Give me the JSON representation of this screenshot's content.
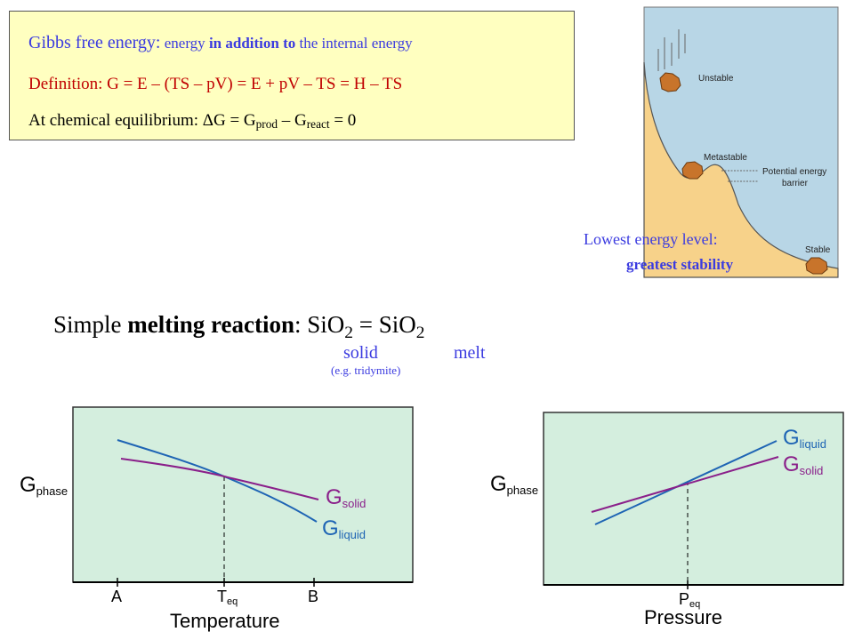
{
  "definition_box": {
    "title": "Gibbs free energy",
    "colon": ":",
    "subtitle_pre": " energy ",
    "subtitle_bold": "in addition to",
    "subtitle_post": " the internal energy",
    "definition": "Definition:  G  =  E – (TS – pV)  =  E + pV – TS  =  H – TS",
    "equilibrium_pre": "At chemical equilibrium:  ΔG  =  G",
    "prod": "prod",
    "minus_g": " – G",
    "react": "react",
    "equals_zero": "  =  0"
  },
  "landscape": {
    "unstable": "Unstable",
    "metastable": "Metastable",
    "barrier_line1": "Potential energy",
    "barrier_line2": "barrier",
    "stable": "Stable",
    "lowest": "Lowest energy level:",
    "greatest": "greatest stability",
    "colors": {
      "sky": "#b8d6e6",
      "ground": "#f7d28a"
    }
  },
  "melting": {
    "pre": "Simple ",
    "bold": "melting reaction",
    "post": ": SiO",
    "sub1": "2",
    "mid": "  =  SiO",
    "sub2": "2",
    "solid": "solid",
    "melt": "melt",
    "example": "(e.g. tridymite)"
  },
  "temperature_plot": {
    "y_label": "G",
    "y_sub": "phase",
    "solid_label": "G",
    "solid_sub": "solid",
    "liquid_label": "G",
    "liquid_sub": "liquid",
    "tick_a": "A",
    "tick_teq": "T",
    "tick_teq_sub": "eq",
    "tick_b": "B",
    "x_label": "Temperature"
  },
  "pressure_plot": {
    "y_label": "G",
    "y_sub": "phase",
    "liquid_label": "G",
    "liquid_sub": "liquid",
    "solid_label": "G",
    "solid_sub": "solid",
    "tick_peq": "P",
    "tick_peq_sub": "eq",
    "x_label": "Pressure"
  },
  "colors": {
    "panel": "#d4eede",
    "solid_line": "#8a1f8a",
    "liquid_line": "#1e64b4"
  }
}
